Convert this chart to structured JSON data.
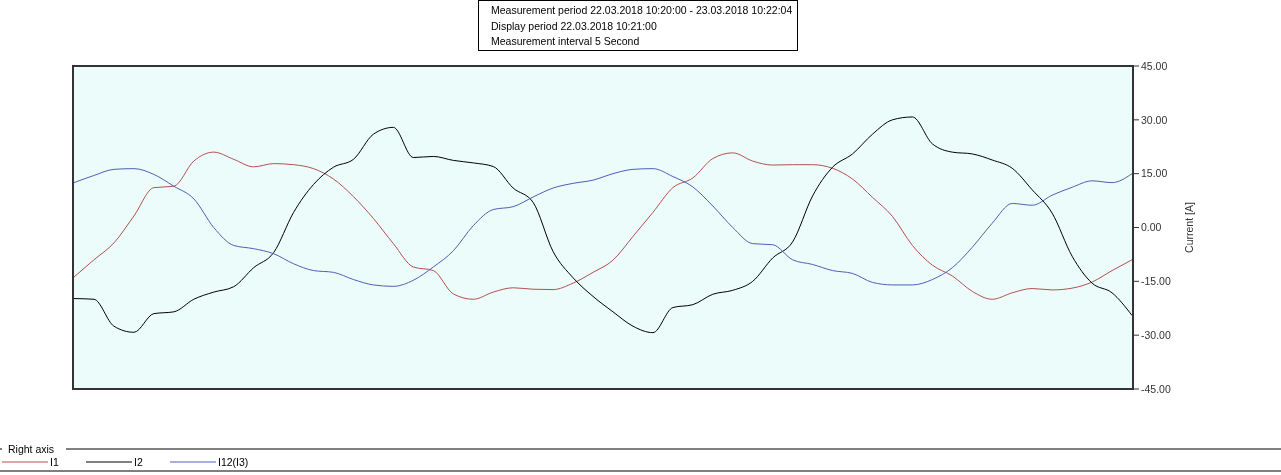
{
  "chart_data": {
    "type": "line",
    "annotations": [
      "Measurement period  22.03.2018 10:20:00 - 23.03.2018 10:22:04",
      "Display period  22.03.2018 10:21:00",
      "Measurement interval  5 Second"
    ],
    "ylabel": "Current [A]",
    "legend_title": "Right axis",
    "legend": "bottom",
    "grid": false,
    "marker": "none",
    "tick_labels": "y",
    "categories": [
      null,
      null,
      null,
      null,
      null,
      null,
      null,
      null,
      null,
      null,
      null,
      null,
      null,
      null,
      null,
      null,
      null,
      null,
      null,
      null,
      null,
      null,
      null,
      null,
      null,
      null,
      null,
      null,
      null,
      null,
      null,
      null,
      null,
      null,
      null,
      null,
      null,
      null,
      null,
      null,
      null,
      null,
      null,
      null,
      null,
      null,
      null,
      null,
      null,
      null,
      null,
      null,
      null,
      null
    ],
    "ylim": [
      -45,
      45
    ],
    "yticks": [
      {
        "value": 45,
        "label": "45.00"
      },
      {
        "value": 30,
        "label": "30.00"
      },
      {
        "value": 15,
        "label": "15.00"
      },
      {
        "value": 0,
        "label": "0.00"
      },
      {
        "value": -15,
        "label": "-15.00"
      },
      {
        "value": -30,
        "label": "-30.00"
      },
      {
        "value": -45,
        "label": "-45.00"
      }
    ],
    "series": [
      {
        "name": "I1",
        "color": "#b5504f",
        "values": [
          -13.8,
          -9,
          -4.3,
          3.2,
          11.1,
          11.5,
          18.5,
          21,
          19,
          16.9,
          17.8,
          17.5,
          16.4,
          13.5,
          8.6,
          2.5,
          -4.5,
          -11,
          -12,
          -18.5,
          -20,
          -18,
          -16.8,
          -17.2,
          -17.3,
          -15.5,
          -12.5,
          -9.1,
          -2.5,
          4.2,
          11.1,
          13.8,
          19.2,
          20.8,
          18.5,
          17.4,
          17.5,
          17.5,
          16.5,
          13.5,
          8.4,
          3.1,
          -5,
          -10.5,
          -13.5,
          -17.8,
          -20,
          -18.2,
          -17,
          -17.4,
          -16.9,
          -15.2,
          -12,
          -9
        ]
      },
      {
        "name": "I2",
        "color": "#000000",
        "values": [
          -19.8,
          -20,
          -27.5,
          -29.2,
          -24,
          -23.5,
          -20,
          -18,
          -16.5,
          -11.2,
          -7,
          4.2,
          12,
          16.8,
          19,
          26,
          27.9,
          19.5,
          19.8,
          18.7,
          18,
          17,
          11,
          7,
          -6.7,
          -14,
          -19.2,
          -23.5,
          -27.5,
          -29.3,
          -22.3,
          -21.5,
          -18.6,
          -17.5,
          -15,
          -8.5,
          -4,
          8.8,
          16.8,
          20.5,
          26,
          30,
          30.8,
          23.3,
          21,
          20.5,
          18.8,
          16.5,
          10.5,
          4,
          -8,
          -15.5,
          -18.2,
          -24.5
        ]
      },
      {
        "name": "I12(I3)",
        "color": "#4f5fb5",
        "values": [
          12.5,
          14.5,
          16.2,
          16.4,
          14.8,
          11.5,
          8,
          0,
          -5,
          -5.9,
          -7.3,
          -10.1,
          -12,
          -12.5,
          -14.5,
          -16,
          -16.4,
          -14.7,
          -11,
          -6.5,
          0.5,
          5,
          5.8,
          8.5,
          11,
          12.3,
          13.2,
          15,
          16.2,
          16.4,
          14.2,
          11.3,
          6,
          0,
          -4.5,
          -4.8,
          -9,
          -10.3,
          -12,
          -12.8,
          -15.3,
          -16,
          -16,
          -14.5,
          -11.2,
          -5.5,
          1.2,
          6.7,
          6.2,
          9,
          11.2,
          13,
          12.5,
          15
        ]
      }
    ]
  }
}
